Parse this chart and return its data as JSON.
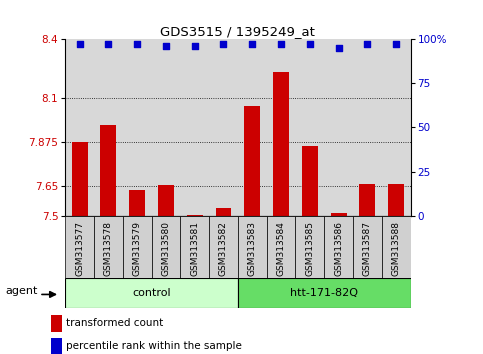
{
  "title": "GDS3515 / 1395249_at",
  "samples": [
    "GSM313577",
    "GSM313578",
    "GSM313579",
    "GSM313580",
    "GSM313581",
    "GSM313582",
    "GSM313583",
    "GSM313584",
    "GSM313585",
    "GSM313586",
    "GSM313587",
    "GSM313588"
  ],
  "bar_values": [
    7.875,
    7.96,
    7.63,
    7.655,
    7.505,
    7.54,
    8.06,
    8.23,
    7.855,
    7.515,
    7.66,
    7.66
  ],
  "percentile_values": [
    97,
    97,
    97,
    96,
    96,
    97,
    97,
    97,
    97,
    95,
    97,
    97
  ],
  "bar_color": "#cc0000",
  "percentile_color": "#0000cc",
  "ymin": 7.5,
  "ymax": 8.4,
  "yticks": [
    7.5,
    7.65,
    7.875,
    8.1,
    8.4
  ],
  "ytick_labels": [
    "7.5",
    "7.65",
    "7.875",
    "8.1",
    "8.4"
  ],
  "right_yticks_pct": [
    0,
    25,
    50,
    75,
    100
  ],
  "right_ytick_labels": [
    "0",
    "25",
    "50",
    "75",
    "100%"
  ],
  "gridlines": [
    7.65,
    7.875,
    8.1
  ],
  "control_label": "control",
  "treatment_label": "htt-171-82Q",
  "agent_label": "agent",
  "control_color": "#ccffcc",
  "treatment_color": "#66dd66",
  "legend_bar_label": "transformed count",
  "legend_percentile_label": "percentile rank within the sample",
  "n_control": 6,
  "n_treatment": 6,
  "plot_bg_color": "#d8d8d8",
  "sample_box_color": "#d0d0d0",
  "fig_bg_color": "#ffffff"
}
